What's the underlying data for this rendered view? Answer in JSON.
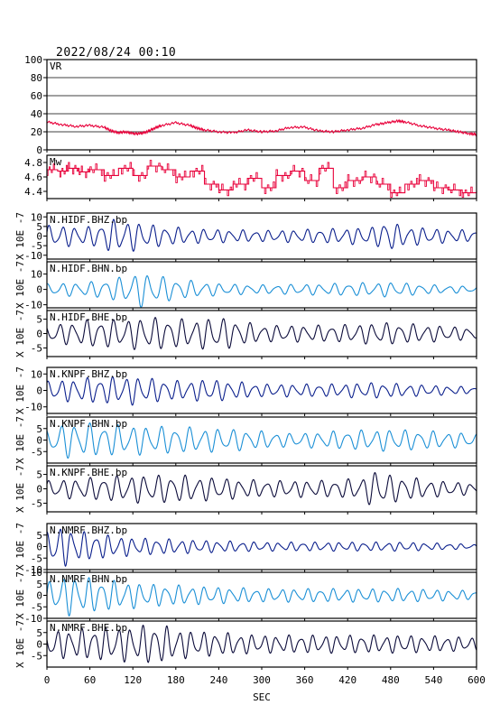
{
  "header": {
    "datetime": "2022/08/24 00:10"
  },
  "chart_data": {
    "type": "line",
    "xlabel": "SEC",
    "xlim": [
      0,
      600
    ],
    "x_ticks": [
      0,
      60,
      120,
      180,
      240,
      300,
      360,
      420,
      480,
      540,
      600
    ],
    "scale_label": "X 10E -7",
    "panels": [
      {
        "name": "VR",
        "ylim": [
          0,
          100
        ],
        "yticks": [
          0,
          20,
          40,
          60,
          80,
          100
        ],
        "hgrid": [
          20,
          40,
          60,
          80
        ],
        "color": "#e8003a",
        "style": "jagged",
        "points": [
          [
            0,
            31
          ],
          [
            20,
            28
          ],
          [
            40,
            26
          ],
          [
            60,
            27
          ],
          [
            80,
            25
          ],
          [
            90,
            21
          ],
          [
            100,
            19
          ],
          [
            110,
            20
          ],
          [
            120,
            18
          ],
          [
            130,
            18
          ],
          [
            140,
            20
          ],
          [
            150,
            24
          ],
          [
            160,
            27
          ],
          [
            180,
            30
          ],
          [
            200,
            27
          ],
          [
            210,
            24
          ],
          [
            220,
            22
          ],
          [
            240,
            20
          ],
          [
            260,
            19
          ],
          [
            280,
            22
          ],
          [
            300,
            20
          ],
          [
            320,
            21
          ],
          [
            340,
            25
          ],
          [
            360,
            25
          ],
          [
            380,
            21
          ],
          [
            400,
            20
          ],
          [
            420,
            22
          ],
          [
            440,
            24
          ],
          [
            460,
            28
          ],
          [
            475,
            30
          ],
          [
            490,
            32
          ],
          [
            500,
            31
          ],
          [
            520,
            27
          ],
          [
            540,
            24
          ],
          [
            560,
            22
          ],
          [
            575,
            20
          ],
          [
            590,
            18
          ],
          [
            600,
            17
          ]
        ]
      },
      {
        "name": "Mw",
        "ylim": [
          4.3,
          4.9
        ],
        "yticks": [
          4.4,
          4.6,
          4.8
        ],
        "hgrid": [],
        "color": "#e8003a",
        "style": "step",
        "points": [
          [
            0,
            4.7
          ],
          [
            15,
            4.68
          ],
          [
            30,
            4.72
          ],
          [
            45,
            4.67
          ],
          [
            60,
            4.7
          ],
          [
            80,
            4.62
          ],
          [
            100,
            4.72
          ],
          [
            120,
            4.62
          ],
          [
            140,
            4.75
          ],
          [
            160,
            4.7
          ],
          [
            180,
            4.6
          ],
          [
            200,
            4.68
          ],
          [
            220,
            4.5
          ],
          [
            240,
            4.42
          ],
          [
            260,
            4.5
          ],
          [
            280,
            4.58
          ],
          [
            300,
            4.45
          ],
          [
            320,
            4.62
          ],
          [
            340,
            4.68
          ],
          [
            360,
            4.55
          ],
          [
            380,
            4.72
          ],
          [
            400,
            4.45
          ],
          [
            420,
            4.55
          ],
          [
            440,
            4.6
          ],
          [
            460,
            4.5
          ],
          [
            480,
            4.38
          ],
          [
            500,
            4.5
          ],
          [
            520,
            4.55
          ],
          [
            540,
            4.45
          ],
          [
            560,
            4.42
          ],
          [
            580,
            4.38
          ],
          [
            600,
            4.4
          ]
        ]
      },
      {
        "name": "N.HIDF.BHZ.bp",
        "ylim": [
          -12,
          12
        ],
        "yticks": [
          -10,
          -5,
          0,
          5,
          10
        ],
        "color": "#0a1f8c",
        "style": "wave",
        "amp_env": [
          [
            0,
            6
          ],
          [
            60,
            5
          ],
          [
            90,
            9
          ],
          [
            120,
            8
          ],
          [
            150,
            6
          ],
          [
            200,
            4
          ],
          [
            300,
            3
          ],
          [
            400,
            4
          ],
          [
            460,
            5
          ],
          [
            475,
            10
          ],
          [
            490,
            6
          ],
          [
            540,
            4
          ],
          [
            600,
            3
          ]
        ],
        "period": 18,
        "phase": 0.3
      },
      {
        "name": "N.HIDF.BHN.bp",
        "ylim": [
          -12,
          18
        ],
        "yticks": [
          -10,
          0,
          10
        ],
        "color": "#1a8fd6",
        "style": "wave",
        "amp_env": [
          [
            0,
            4
          ],
          [
            60,
            5
          ],
          [
            100,
            8
          ],
          [
            130,
            12
          ],
          [
            150,
            10
          ],
          [
            180,
            7
          ],
          [
            240,
            4
          ],
          [
            300,
            3
          ],
          [
            400,
            4
          ],
          [
            480,
            5
          ],
          [
            540,
            3
          ],
          [
            600,
            2
          ]
        ],
        "period": 20,
        "phase": 1.1
      },
      {
        "name": "N.HIDF.BHE.bp",
        "ylim": [
          -8,
          8
        ],
        "yticks": [
          -5,
          0,
          5
        ],
        "color": "#0b0b3a",
        "style": "wave",
        "amp_env": [
          [
            0,
            3
          ],
          [
            60,
            5
          ],
          [
            100,
            5
          ],
          [
            140,
            6
          ],
          [
            200,
            5
          ],
          [
            240,
            6
          ],
          [
            300,
            3
          ],
          [
            400,
            3
          ],
          [
            470,
            4
          ],
          [
            540,
            3
          ],
          [
            600,
            2
          ]
        ],
        "period": 19,
        "phase": 2.0
      },
      {
        "name": "N.KNPF.BHZ.bp",
        "ylim": [
          -14,
          14
        ],
        "yticks": [
          -10,
          0,
          10
        ],
        "color": "#0a1f8c",
        "style": "wave",
        "amp_env": [
          [
            0,
            6
          ],
          [
            60,
            8
          ],
          [
            120,
            9
          ],
          [
            180,
            6
          ],
          [
            230,
            7
          ],
          [
            300,
            4
          ],
          [
            400,
            4
          ],
          [
            450,
            5
          ],
          [
            500,
            4
          ],
          [
            600,
            2
          ]
        ],
        "period": 18,
        "phase": 0.8
      },
      {
        "name": "N.KNPF.BHN.bp",
        "ylim": [
          -10,
          10
        ],
        "yticks": [
          -5,
          0,
          5
        ],
        "color": "#1a8fd6",
        "style": "wave",
        "amp_env": [
          [
            0,
            5
          ],
          [
            30,
            8
          ],
          [
            90,
            7
          ],
          [
            180,
            6
          ],
          [
            260,
            5
          ],
          [
            340,
            3
          ],
          [
            400,
            4
          ],
          [
            480,
            5
          ],
          [
            540,
            4
          ],
          [
            600,
            3
          ]
        ],
        "period": 20,
        "phase": 1.7
      },
      {
        "name": "N.KNPF.BHE.bp",
        "ylim": [
          -8,
          8
        ],
        "yticks": [
          -5,
          0,
          5
        ],
        "color": "#0b0b3a",
        "style": "wave",
        "amp_env": [
          [
            0,
            3
          ],
          [
            60,
            4
          ],
          [
            120,
            5
          ],
          [
            180,
            5
          ],
          [
            240,
            4
          ],
          [
            300,
            3
          ],
          [
            400,
            3
          ],
          [
            440,
            4
          ],
          [
            460,
            7
          ],
          [
            480,
            5
          ],
          [
            540,
            3
          ],
          [
            600,
            2
          ]
        ],
        "period": 19,
        "phase": 0.5
      },
      {
        "name": "N.NMRF.BHZ.bp",
        "ylim": [
          -10,
          10
        ],
        "yticks": [
          -10,
          -5,
          0,
          5
        ],
        "color": "#0a1f8c",
        "style": "wave",
        "amp_env": [
          [
            0,
            7
          ],
          [
            20,
            9
          ],
          [
            60,
            6
          ],
          [
            120,
            4
          ],
          [
            200,
            3
          ],
          [
            300,
            2
          ],
          [
            400,
            2
          ],
          [
            500,
            2
          ],
          [
            600,
            1
          ]
        ],
        "period": 17,
        "phase": 1.3
      },
      {
        "name": "N.NMRF.BHN.bp",
        "ylim": [
          -10,
          10
        ],
        "yticks": [
          -10,
          -5,
          0,
          5,
          10
        ],
        "color": "#1a8fd6",
        "style": "wave",
        "amp_env": [
          [
            0,
            6
          ],
          [
            30,
            9
          ],
          [
            80,
            7
          ],
          [
            150,
            5
          ],
          [
            220,
            4
          ],
          [
            300,
            3
          ],
          [
            400,
            3
          ],
          [
            500,
            3
          ],
          [
            600,
            2
          ]
        ],
        "period": 18,
        "phase": 0.1
      },
      {
        "name": "N.NMRF.BHE.bp",
        "ylim": [
          -10,
          10
        ],
        "yticks": [
          -5,
          0,
          5
        ],
        "color": "#0b0b3a",
        "style": "wave",
        "amp_env": [
          [
            0,
            6
          ],
          [
            60,
            7
          ],
          [
            120,
            8
          ],
          [
            150,
            9
          ],
          [
            200,
            6
          ],
          [
            300,
            4
          ],
          [
            400,
            4
          ],
          [
            500,
            4
          ],
          [
            600,
            3
          ]
        ],
        "period": 17,
        "phase": 2.4
      }
    ]
  }
}
